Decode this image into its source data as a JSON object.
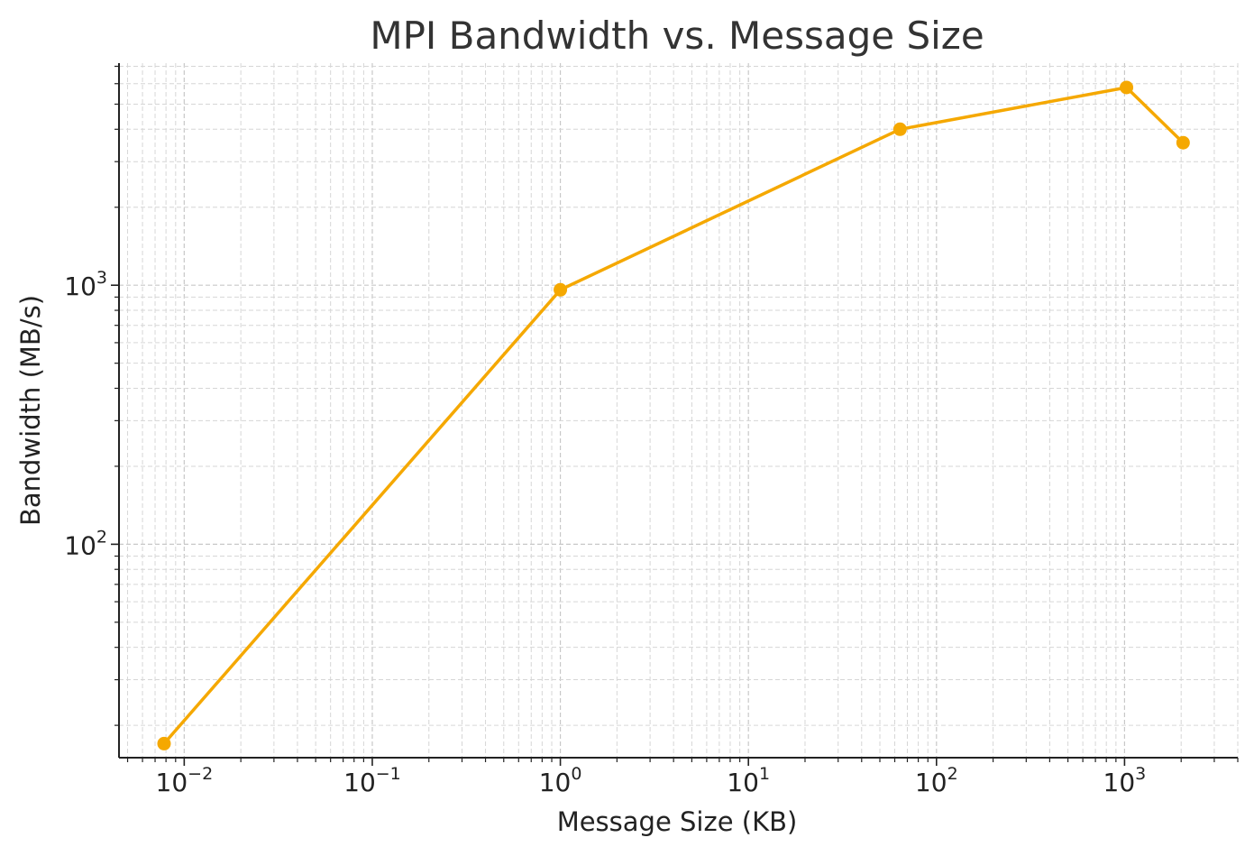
{
  "chart_data": {
    "type": "line",
    "title": "MPI Bandwidth vs. Message Size",
    "xlabel": "Message Size (KB)",
    "ylabel": "Bandwidth (MB/s)",
    "xscale": "log",
    "yscale": "log",
    "xlim": [
      0.0045,
      4000
    ],
    "ylim": [
      15,
      7200
    ],
    "grid": true,
    "legend": "none",
    "x_ticks": [
      {
        "value": 0.01,
        "base": "10",
        "exp": "−2"
      },
      {
        "value": 0.1,
        "base": "10",
        "exp": "−1"
      },
      {
        "value": 1,
        "base": "10",
        "exp": "0"
      },
      {
        "value": 10,
        "base": "10",
        "exp": "1"
      },
      {
        "value": 100,
        "base": "10",
        "exp": "2"
      },
      {
        "value": 1000,
        "base": "10",
        "exp": "3"
      }
    ],
    "y_ticks": [
      {
        "value": 100,
        "base": "10",
        "exp": "2"
      },
      {
        "value": 1000,
        "base": "10",
        "exp": "3"
      }
    ],
    "series": [
      {
        "color": "#F5A800",
        "marker": "circle",
        "x": [
          0.0078125,
          1,
          64,
          1024,
          2048
        ],
        "y": [
          17,
          960,
          4000,
          5800,
          3550
        ]
      }
    ]
  }
}
